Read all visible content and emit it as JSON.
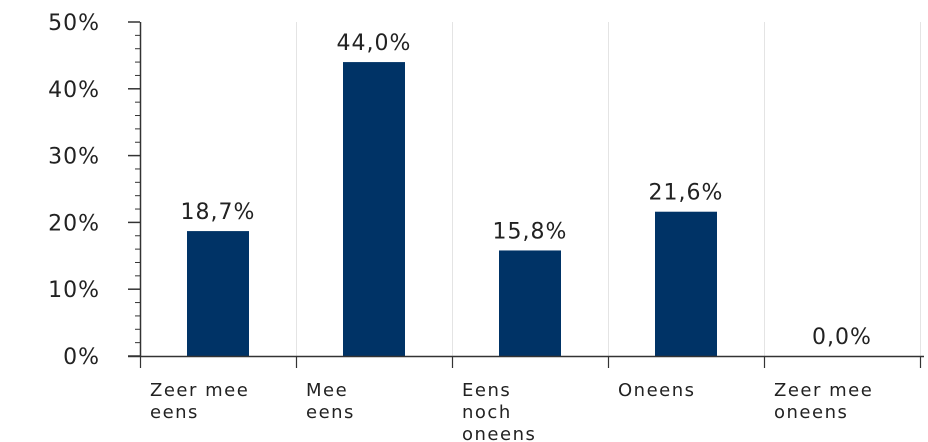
{
  "chart_data": {
    "type": "bar",
    "categories": [
      [
        "Zeer mee",
        "eens"
      ],
      [
        "Mee",
        "eens"
      ],
      [
        "Eens",
        "noch",
        "oneens"
      ],
      [
        "Oneens"
      ],
      [
        "Zeer mee",
        "oneens"
      ]
    ],
    "values": [
      18.7,
      44.0,
      15.8,
      21.6,
      0.0
    ],
    "data_labels": [
      "18,7%",
      "44,0%",
      "15,8%",
      "21,6%",
      "0,0%"
    ],
    "ylim": [
      0,
      50
    ],
    "yticks": [
      0,
      10,
      20,
      30,
      40,
      50
    ],
    "ytick_labels": [
      "0%",
      "10%",
      "20%",
      "30%",
      "40%",
      "50%"
    ],
    "title": "",
    "xlabel": "",
    "ylabel": "",
    "grid": true,
    "bar_color": "#003366",
    "grid_color": "#e4e4e4",
    "axis_color": "#333333"
  }
}
